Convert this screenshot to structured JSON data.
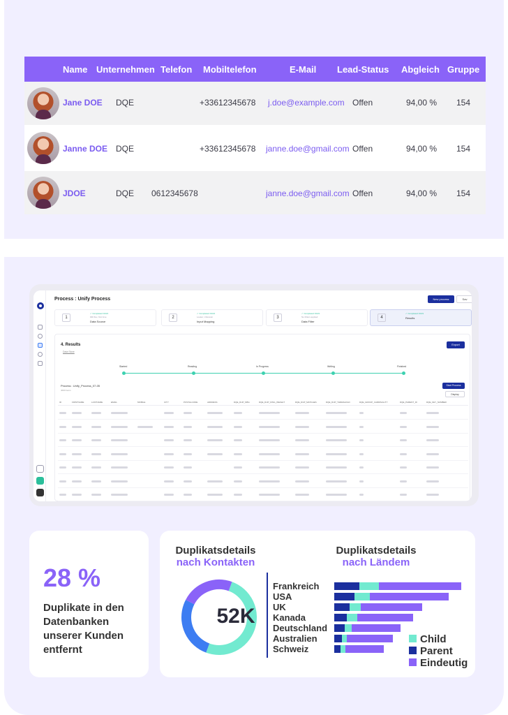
{
  "contacts_table": {
    "headers": [
      "Name",
      "Unternehmen",
      "Telefon",
      "Mobiltelefon",
      "E-Mail",
      "Lead-Status",
      "Abgleich",
      "Gruppe"
    ],
    "rows": [
      {
        "name": "Jane DOE",
        "company": "DQE",
        "phone": "",
        "mobile": "+33612345678",
        "email": "j.doe@example.com",
        "status": "Offen",
        "match": "94,00 %",
        "group": "154"
      },
      {
        "name": "Janne DOE",
        "company": "DQE",
        "phone": "",
        "mobile": "+33612345678",
        "email": "janne.doe@gmail.com",
        "status": "Offen",
        "match": "94,00 %",
        "group": "154"
      },
      {
        "name": "JDOE",
        "company": "DQE",
        "phone": "0612345678",
        "mobile": "",
        "email": "janne.doe@gmail.com",
        "status": "Offen",
        "match": "94,00 %",
        "group": "154"
      }
    ]
  },
  "app": {
    "title": "Process : Unify Process",
    "new_process": "New process",
    "save": "Sav",
    "steps": [
      {
        "num": "1",
        "status": "✓ Completed 01/21",
        "sub": "000 flux, first time",
        "label": "Data Source"
      },
      {
        "num": "2",
        "status": "✓ Completed 01/21",
        "sub": "Looker, Unknown",
        "label": "Input Mapping"
      },
      {
        "num": "3",
        "status": "✓ Completed 01/21",
        "sub": "No Filters applied",
        "label": "Data Filter"
      },
      {
        "num": "4",
        "status": "✓ Completed 01/21",
        "sub": "",
        "label": "Results"
      }
    ],
    "results_title": "4. Results",
    "results_sub": "Data Store",
    "export": "Export",
    "timeline": [
      "Started",
      "Reading",
      "In Progress",
      "Writing",
      "Finished"
    ],
    "process_name": "Process : Unify_Process_07-05",
    "process_items": "4000 items",
    "start_process": "Start Process",
    "display": "Display",
    "grid_columns": [
      "ID",
      "FIRSTNAME",
      "LASTNAME",
      "EMAIL",
      "MOBILE",
      "CITY",
      "POSTALCODE",
      "ADDRESS",
      "DQE_DUP_NBG",
      "DQE_DUP_KING_WEIGHT",
      "DQE_DUP_MATCHES",
      "DQE_DUP_THRESHOLD",
      "DQE_GROUP_CARDINALITY",
      "DQE_PARENT_ID",
      "DQE_KEY_NUMBER"
    ]
  },
  "stat": {
    "percent": "28 %",
    "text": "Duplikate in den Datenbanken unserer Kunden entfernt"
  },
  "duplicates_contacts": {
    "title_line1": "Duplikatsdetails",
    "title_line2": "nach Kontakten",
    "center_label": "52K"
  },
  "duplicates_countries": {
    "title_line1": "Duplikatsdetails",
    "title_line2": "nach Ländem"
  },
  "colors": {
    "accent": "#8a63f8",
    "teal": "#72ead0",
    "navy": "#1b2f9e",
    "blue": "#3d7df2"
  },
  "chart_data": [
    {
      "type": "pie",
      "title": "Duplikatsdetails nach Kontakten",
      "center_label": "52K",
      "slices": [
        {
          "value": 0.5,
          "color": "#72ead0"
        },
        {
          "value": 0.27,
          "color": "#3d7df2"
        },
        {
          "value": 0.23,
          "color": "#8a63f8"
        }
      ]
    },
    {
      "type": "bar",
      "orientation": "horizontal",
      "stacked": true,
      "title": "Duplikatsdetails nach Ländem",
      "categories": [
        "Frankreich",
        "USA",
        "UK",
        "Kanada",
        "Deutschland",
        "Australien",
        "Schweiz"
      ],
      "series": [
        {
          "name": "Child",
          "color": "#72ead0",
          "values": [
            15,
            12,
            9,
            8,
            6,
            4,
            4
          ]
        },
        {
          "name": "Parent",
          "color": "#1b2f9e",
          "values": [
            20,
            16,
            12,
            10,
            8,
            6,
            5
          ]
        },
        {
          "name": "Eindeutig",
          "color": "#8a63f8",
          "values": [
            65,
            62,
            48,
            44,
            38,
            36,
            30
          ]
        }
      ],
      "legend": "bottom-right"
    }
  ]
}
